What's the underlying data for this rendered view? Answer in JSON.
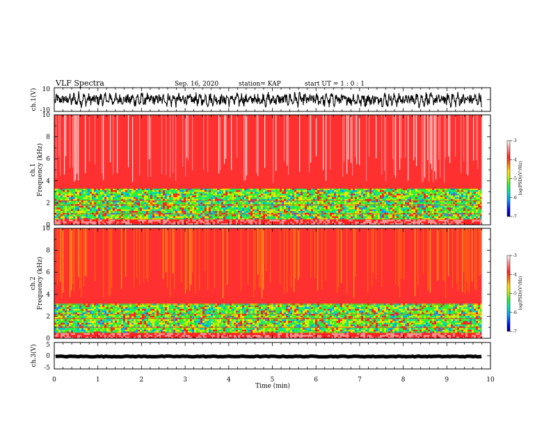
{
  "header": {
    "title": "VLF Spectra",
    "date": "Sep. 16, 2020",
    "station": "station= KAP",
    "start": "start  UT =   1 : 0  : 1"
  },
  "chart_data": [
    {
      "panel": "ch1-waveform",
      "type": "line",
      "ylabel": "ch.1(V)",
      "ylim": [
        -10,
        10
      ],
      "ytick_labels": [
        "10",
        "-10"
      ],
      "x_range_min": [
        0,
        9.8
      ],
      "description_level": "noisy waveform centered near 0 V, amplitude about ±6 V"
    },
    {
      "panel": "ch1-spectrogram",
      "type": "heatmap",
      "ylabel_line1": "ch.1",
      "ylabel_line2": "Frequency (kHz)",
      "ylim": [
        0,
        10
      ],
      "ytick_labels": [
        "0",
        "2",
        "4",
        "6",
        "8",
        "10"
      ],
      "x_range_min": [
        0,
        9.8
      ],
      "band_edge_khz": 3.3,
      "colorbar": {
        "label": "log(PSD)(V²/Hz)",
        "range": [
          -7,
          -3
        ],
        "tick_labels": [
          "-3",
          "-4",
          "-5",
          "-6",
          "-7"
        ]
      }
    },
    {
      "panel": "ch2-spectrogram",
      "type": "heatmap",
      "ylabel_line1": "ch.2",
      "ylabel_line2": "Frequency (kHz)",
      "ylim": [
        0,
        10
      ],
      "ytick_labels": [
        "0",
        "2",
        "4",
        "6",
        "8",
        "10"
      ],
      "x_range_min": [
        0,
        9.8
      ],
      "band_edge_khz": 3.1,
      "colorbar": {
        "label": "log(PSD)(V²/Hz)",
        "range": [
          -7,
          -3
        ],
        "tick_labels": [
          "-3",
          "-4",
          "-5",
          "-6",
          "-7"
        ]
      }
    },
    {
      "panel": "ch3-waveform",
      "type": "line",
      "ylabel": "ch.3(V)",
      "ylim": [
        -5,
        5
      ],
      "ytick_labels": [
        "5",
        "0",
        "-5"
      ],
      "x_range_min": [
        0,
        9.8
      ],
      "description_level": "thick trace near -0.3 V"
    }
  ],
  "x_axis": {
    "label": "Time (min)",
    "range": [
      0,
      10
    ],
    "tick_labels": [
      "0",
      "1",
      "2",
      "3",
      "4",
      "5",
      "6",
      "7",
      "8",
      "9",
      "10"
    ]
  },
  "colors": {
    "line": "#000000",
    "colormap": [
      "#000066",
      "#0000ff",
      "#00a0ff",
      "#00e0b0",
      "#30f030",
      "#c8f000",
      "#ffe000",
      "#ff8000",
      "#ff2020",
      "#ff9090",
      "#ffffff"
    ]
  }
}
